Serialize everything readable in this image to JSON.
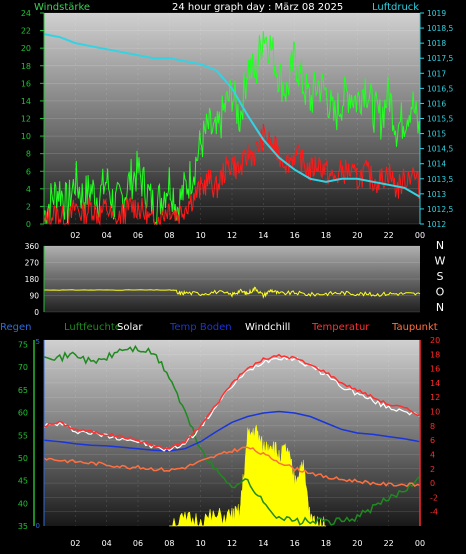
{
  "colors": {
    "background": "#000000",
    "wind_label": "#39d353",
    "pressure_label": "#30d0e0",
    "wind_avg": "#ff1a1a",
    "wind_gust": "#22ff22",
    "pressure": "#33d3e3",
    "direction": "#ffff22",
    "rain": "#2e6bd8",
    "humidity": "#1f8a1f",
    "solar": "#ffff00",
    "soil_temp": "#1a35d8",
    "windchill": "#ffffff",
    "temperature": "#ff3030",
    "dewpoint": "#ff7040",
    "tick_text": "#ffffff",
    "left_axis_color": "#22c033",
    "right_axis_color_top": "#33d3e3",
    "right_axis_color_bottom": "#ff2a2a",
    "compass_color": "#ffffff"
  },
  "chart_data": [
    {
      "id": "wind-pressure",
      "type": "line",
      "title": "24 hour graph day : März 08 2025",
      "y_left_label": "Windstärke",
      "y_right_label": "Luftdruck",
      "x_ticks": [
        "02",
        "04",
        "06",
        "08",
        "10",
        "12",
        "14",
        "16",
        "18",
        "20",
        "22",
        "00"
      ],
      "y_left_ticks": [
        "0",
        "2",
        "4",
        "6",
        "8",
        "10",
        "12",
        "14",
        "16",
        "18",
        "20",
        "22",
        "24"
      ],
      "y_left_range": [
        0,
        24
      ],
      "y_right_ticks": [
        "1012",
        "1012,5",
        "1013",
        "1013,5",
        "1014",
        "1014,5",
        "1015",
        "1015,5",
        "1016",
        "1016,5",
        "1017",
        "1017,5",
        "1018",
        "1018,5",
        "1019"
      ],
      "y_right_range": [
        1012,
        1019
      ],
      "x_range": [
        0,
        24
      ],
      "pressure": {
        "x": [
          0,
          1,
          2,
          3,
          4,
          5,
          6,
          7,
          8,
          9,
          10,
          11,
          12,
          13,
          14,
          15,
          16,
          17,
          18,
          19,
          20,
          21,
          22,
          23,
          24
        ],
        "y": [
          1018.3,
          1018.2,
          1018.0,
          1017.9,
          1017.8,
          1017.7,
          1017.6,
          1017.5,
          1017.5,
          1017.4,
          1017.3,
          1017.1,
          1016.5,
          1015.6,
          1014.8,
          1014.2,
          1013.8,
          1013.5,
          1013.4,
          1013.5,
          1013.5,
          1013.4,
          1013.3,
          1013.2,
          1012.9
        ]
      },
      "wind_gust": {
        "x": [
          0,
          0.5,
          1,
          1.5,
          2,
          2.5,
          3,
          3.5,
          4,
          4.5,
          5,
          5.5,
          6,
          6.5,
          7,
          7.5,
          8,
          8.5,
          9,
          9.5,
          10,
          10.5,
          11,
          11.5,
          12,
          12.5,
          13,
          13.5,
          14,
          14.5,
          15,
          15.5,
          16,
          16.5,
          17,
          17.5,
          18,
          18.5,
          19,
          19.5,
          20,
          20.5,
          21,
          21.5,
          22,
          22.5,
          23,
          23.5,
          24
        ],
        "y": [
          1,
          3,
          4,
          2,
          5,
          3,
          4,
          3,
          5,
          2,
          3,
          5,
          6,
          4,
          2,
          3,
          5,
          2,
          4,
          6,
          9,
          11,
          10,
          13,
          15,
          12,
          18,
          17,
          22,
          20,
          17,
          15,
          19,
          16,
          14,
          16,
          15,
          12,
          14,
          15,
          14,
          16,
          13,
          12,
          15,
          11,
          12,
          14,
          10
        ]
      },
      "wind_avg": {
        "x": [
          0,
          0.5,
          1,
          1.5,
          2,
          2.5,
          3,
          3.5,
          4,
          4.5,
          5,
          5.5,
          6,
          6.5,
          7,
          7.5,
          8,
          8.5,
          9,
          9.5,
          10,
          10.5,
          11,
          11.5,
          12,
          12.5,
          13,
          13.5,
          14,
          14.5,
          15,
          15.5,
          16,
          16.5,
          17,
          17.5,
          18,
          18.5,
          19,
          19.5,
          20,
          20.5,
          21,
          21.5,
          22,
          22.5,
          23,
          23.5,
          24
        ],
        "y": [
          0,
          1,
          1,
          0,
          2,
          1,
          2,
          1,
          2,
          0,
          1,
          2,
          2,
          1,
          0,
          1,
          2,
          1,
          2,
          3,
          4,
          5,
          4,
          6,
          7,
          6,
          8,
          8,
          10,
          9,
          8,
          7,
          8,
          7,
          6,
          7,
          6,
          5,
          6,
          6,
          5,
          6,
          5,
          5,
          6,
          4,
          5,
          6,
          4
        ]
      }
    },
    {
      "id": "wind-direction",
      "type": "line",
      "y_ticks": [
        "0",
        "90",
        "180",
        "270",
        "360"
      ],
      "y_range": [
        0,
        360
      ],
      "compass": [
        "N",
        "W",
        "S",
        "O",
        "N"
      ],
      "direction": {
        "x": [
          0,
          2,
          4,
          6,
          8,
          8.5,
          9,
          10,
          11,
          12,
          12.5,
          13,
          13.5,
          14,
          14.5,
          15,
          16,
          17,
          18,
          19,
          20,
          21,
          22,
          23,
          24
        ],
        "y": [
          120,
          120,
          120,
          122,
          118,
          100,
          105,
          100,
          110,
          95,
          115,
          100,
          130,
          90,
          120,
          100,
          105,
          95,
          100,
          105,
          100,
          95,
          100,
          100,
          98
        ]
      }
    },
    {
      "id": "temp-humidity",
      "type": "line",
      "legend": [
        "Regen",
        "Luftfeuchte",
        "Solar",
        "Temp Boden",
        "Windchill",
        "Temperatur",
        "Taupunkt"
      ],
      "x_ticks": [
        "02",
        "04",
        "06",
        "08",
        "10",
        "12",
        "14",
        "16",
        "18",
        "20",
        "22",
        "00"
      ],
      "y_left_ticks": [
        "35",
        "40",
        "45",
        "50",
        "55",
        "60",
        "65",
        "70",
        "75"
      ],
      "y_left_range": [
        35,
        76
      ],
      "y_right_ticks": [
        "-4",
        "-2",
        "0",
        "2",
        "4",
        "6",
        "8",
        "10",
        "12",
        "14",
        "16",
        "18",
        "20"
      ],
      "y_right_range": [
        -6,
        20
      ],
      "rain_ticks": [
        "0",
        "5"
      ],
      "humidity": {
        "x": [
          0,
          1,
          2,
          3,
          4,
          5,
          6,
          7,
          8,
          9,
          10,
          11,
          12,
          13,
          14,
          15,
          16,
          17,
          18,
          19,
          20,
          21,
          22,
          23,
          24
        ],
        "y": [
          73,
          72,
          73,
          71,
          72,
          74,
          74,
          73,
          68,
          60,
          52,
          47,
          44,
          45,
          40,
          37,
          36,
          36,
          36,
          36,
          37,
          39,
          41,
          43,
          46
        ]
      },
      "temperature": {
        "x": [
          0,
          1,
          2,
          3,
          4,
          5,
          6,
          7,
          8,
          9,
          10,
          11,
          12,
          13,
          14,
          15,
          16,
          17,
          18,
          19,
          20,
          21,
          22,
          23,
          24
        ],
        "y": [
          8,
          8.5,
          7.5,
          7.2,
          6.8,
          6.5,
          6,
          5.2,
          4.8,
          5.8,
          8,
          11,
          14,
          16,
          17.3,
          17.8,
          17.5,
          16.5,
          15.5,
          14,
          13,
          12,
          11,
          10.5,
          9.5
        ]
      },
      "windchill": {
        "x": [
          0,
          1,
          2,
          3,
          4,
          5,
          6,
          7,
          8,
          9,
          10,
          11,
          12,
          13,
          14,
          15,
          16,
          17,
          18,
          19,
          20,
          21,
          22,
          23,
          24
        ],
        "y": [
          8,
          8.3,
          7.3,
          7,
          6.6,
          6.3,
          5.8,
          5,
          4.6,
          5.6,
          7.8,
          10.8,
          13.6,
          15.6,
          17,
          17.6,
          17.4,
          16.3,
          15.2,
          13.5,
          12.5,
          11.5,
          10.5,
          10.2,
          9.3
        ]
      },
      "soil_temp": {
        "x": [
          0,
          1,
          2,
          3,
          4,
          5,
          6,
          7,
          8,
          9,
          10,
          11,
          12,
          13,
          14,
          15,
          16,
          17,
          18,
          19,
          20,
          21,
          22,
          23,
          24
        ],
        "y": [
          6,
          5.8,
          5.5,
          5.3,
          5.2,
          5,
          4.8,
          4.6,
          4.5,
          4.8,
          5.8,
          7.2,
          8.5,
          9.3,
          9.8,
          10,
          9.8,
          9.3,
          8.4,
          7.5,
          7,
          6.8,
          6.5,
          6.2,
          5.8
        ]
      },
      "dewpoint": {
        "x": [
          0,
          1,
          2,
          3,
          4,
          5,
          6,
          7,
          8,
          9,
          10,
          11,
          12,
          13,
          14,
          15,
          16,
          17,
          18,
          19,
          20,
          21,
          22,
          23,
          24
        ],
        "y": [
          3.5,
          3.2,
          3,
          2.8,
          2.6,
          2.3,
          2.2,
          2,
          1.8,
          2.2,
          3,
          3.8,
          4.5,
          5,
          4,
          3,
          2,
          1.5,
          0.8,
          0.5,
          0.3,
          0,
          -0.2,
          -0.2,
          -0.3
        ]
      },
      "solar": {
        "x": [
          8,
          9,
          10,
          11,
          12,
          12.5,
          13,
          13.5,
          14,
          14.5,
          15,
          15.5,
          16,
          16.5,
          17,
          17.5,
          18
        ],
        "y": [
          0.5,
          0.8,
          1,
          1.3,
          1.6,
          2,
          14,
          15,
          12,
          13,
          11,
          12,
          7,
          10,
          1,
          0.5,
          0
        ]
      }
    }
  ]
}
